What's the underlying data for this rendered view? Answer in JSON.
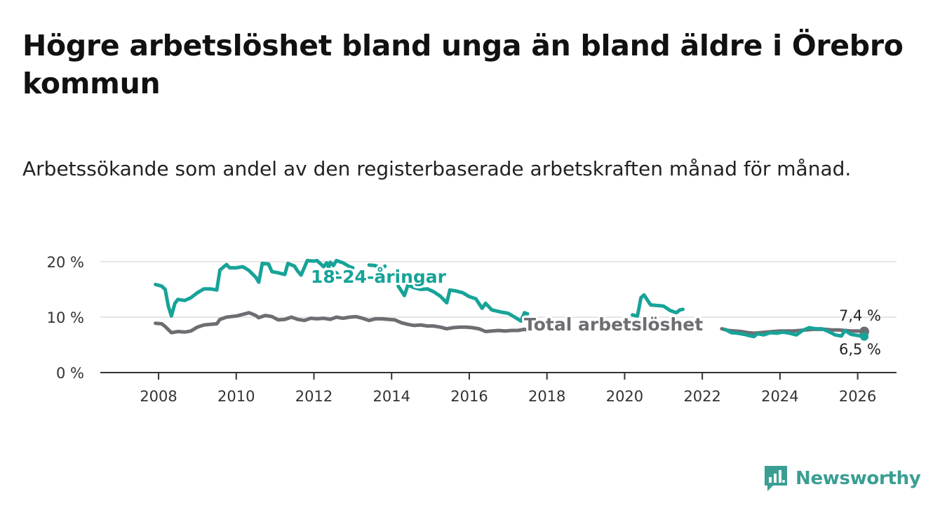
{
  "title": "Högre arbetslöshet bland unga än bland äldre i Örebro kommun",
  "subtitle": "Arbetssökande som andel av den registerbaserade arbetskraften månad för månad.",
  "brand": {
    "name": "Newsworthy"
  },
  "colors": {
    "youth": "#17a398",
    "total": "#6d6d72",
    "axis": "#333333",
    "grid": "#dddddd"
  },
  "chart_data": {
    "type": "line",
    "x_ticks": [
      "2008",
      "2010",
      "2012",
      "2014",
      "2016",
      "2018",
      "2020",
      "2022",
      "2024",
      "2026"
    ],
    "x_tick_values": [
      2008,
      2010,
      2012,
      2014,
      2016,
      2018,
      2020,
      2022,
      2024,
      2026
    ],
    "y_ticks": [
      "0 %",
      "10 %",
      "20 %"
    ],
    "y_tick_values": [
      0,
      10,
      20
    ],
    "xlim": [
      2006.5,
      2027.0
    ],
    "ylim": [
      0,
      20
    ],
    "grid": "horizontal",
    "series": [
      {
        "name": "18-24-åringar",
        "label": "18-24-åringar",
        "color": "#17a398",
        "end_label": "6,5 %",
        "points": [
          [
            2007.92,
            15.9
          ],
          [
            2008.08,
            15.6
          ],
          [
            2008.17,
            15.0
          ],
          [
            2008.25,
            12.0
          ],
          [
            2008.33,
            10.2
          ],
          [
            2008.42,
            12.5
          ],
          [
            2008.5,
            13.2
          ],
          [
            2008.67,
            13.0
          ],
          [
            2008.83,
            13.5
          ],
          [
            2009.0,
            14.4
          ],
          [
            2009.17,
            15.1
          ],
          [
            2009.33,
            15.1
          ],
          [
            2009.5,
            14.9
          ],
          [
            2009.58,
            18.5
          ],
          [
            2009.75,
            19.5
          ],
          [
            2009.83,
            18.9
          ],
          [
            2010.0,
            18.9
          ],
          [
            2010.17,
            19.1
          ],
          [
            2010.33,
            18.4
          ],
          [
            2010.5,
            17.2
          ],
          [
            2010.58,
            16.3
          ],
          [
            2010.67,
            19.7
          ],
          [
            2010.83,
            19.6
          ],
          [
            2010.92,
            18.2
          ],
          [
            2011.08,
            18.0
          ],
          [
            2011.25,
            17.7
          ],
          [
            2011.33,
            19.7
          ],
          [
            2011.5,
            19.2
          ],
          [
            2011.58,
            18.3
          ],
          [
            2011.67,
            17.6
          ],
          [
            2011.83,
            20.2
          ],
          [
            2012.0,
            20.1
          ],
          [
            2012.08,
            20.2
          ],
          [
            2012.25,
            19.1
          ],
          [
            2012.33,
            19.8
          ],
          [
            2012.42,
            18.4
          ],
          [
            2012.58,
            18.0
          ],
          [
            2012.67,
            17.1
          ]
        ],
        "segments": [
          [
            [
              2012.33,
              17.9
            ],
            [
              2012.42,
              19.9
            ],
            [
              2012.5,
              19.3
            ],
            [
              2012.58,
              20.2
            ],
            [
              2012.75,
              19.8
            ],
            [
              2012.92,
              19.1
            ],
            [
              2013.0,
              18.9
            ]
          ],
          [
            [
              2013.42,
              19.4
            ],
            [
              2013.58,
              19.3
            ],
            [
              2013.75,
              18.7
            ],
            [
              2013.83,
              19.2
            ]
          ],
          [
            [
              2014.17,
              15.6
            ],
            [
              2014.33,
              13.9
            ],
            [
              2014.42,
              15.8
            ],
            [
              2014.58,
              15.3
            ],
            [
              2014.75,
              15.0
            ],
            [
              2014.92,
              15.1
            ],
            [
              2015.08,
              14.6
            ],
            [
              2015.25,
              13.8
            ],
            [
              2015.42,
              12.6
            ],
            [
              2015.5,
              14.9
            ],
            [
              2015.67,
              14.7
            ],
            [
              2015.83,
              14.4
            ],
            [
              2016.0,
              13.7
            ],
            [
              2016.17,
              13.3
            ],
            [
              2016.33,
              11.6
            ],
            [
              2016.42,
              12.5
            ],
            [
              2016.58,
              11.3
            ],
            [
              2016.83,
              10.9
            ],
            [
              2017.0,
              10.7
            ],
            [
              2017.17,
              10.0
            ],
            [
              2017.33,
              9.3
            ],
            [
              2017.42,
              10.8
            ],
            [
              2017.5,
              10.6
            ]
          ],
          [
            [
              2020.2,
              10.4
            ],
            [
              2020.33,
              10.2
            ],
            [
              2020.42,
              13.5
            ],
            [
              2020.5,
              14.0
            ],
            [
              2020.67,
              12.2
            ],
            [
              2020.83,
              12.1
            ],
            [
              2021.0,
              12.0
            ],
            [
              2021.17,
              11.2
            ],
            [
              2021.33,
              10.8
            ],
            [
              2021.42,
              11.3
            ],
            [
              2021.5,
              11.4
            ]
          ],
          [
            [
              2022.58,
              7.8
            ],
            [
              2022.75,
              7.2
            ],
            [
              2022.92,
              7.1
            ],
            [
              2023.08,
              6.9
            ],
            [
              2023.25,
              6.6
            ],
            [
              2023.33,
              6.5
            ],
            [
              2023.42,
              7.0
            ],
            [
              2023.58,
              6.8
            ],
            [
              2023.75,
              7.2
            ],
            [
              2023.92,
              7.1
            ],
            [
              2024.08,
              7.3
            ],
            [
              2024.25,
              7.1
            ],
            [
              2024.42,
              6.8
            ],
            [
              2024.58,
              7.6
            ],
            [
              2024.75,
              8.1
            ],
            [
              2024.92,
              7.9
            ],
            [
              2025.08,
              7.9
            ],
            [
              2025.25,
              7.4
            ],
            [
              2025.42,
              6.8
            ],
            [
              2025.58,
              6.6
            ],
            [
              2025.67,
              7.6
            ],
            [
              2025.83,
              6.9
            ],
            [
              2026.0,
              6.7
            ],
            [
              2026.08,
              6.6
            ],
            [
              2026.17,
              6.5
            ]
          ]
        ]
      },
      {
        "name": "Total arbetslöshet",
        "label": "Total arbetslöshet",
        "color": "#6d6d72",
        "end_label": "7,4 %",
        "points": [
          [
            2007.92,
            8.9
          ],
          [
            2008.08,
            8.8
          ],
          [
            2008.17,
            8.3
          ],
          [
            2008.33,
            7.2
          ],
          [
            2008.5,
            7.4
          ],
          [
            2008.67,
            7.3
          ],
          [
            2008.83,
            7.5
          ],
          [
            2009.0,
            8.2
          ],
          [
            2009.17,
            8.6
          ],
          [
            2009.33,
            8.7
          ],
          [
            2009.5,
            8.8
          ],
          [
            2009.58,
            9.6
          ],
          [
            2009.75,
            10.0
          ],
          [
            2010.0,
            10.2
          ],
          [
            2010.17,
            10.5
          ],
          [
            2010.33,
            10.8
          ],
          [
            2010.5,
            10.3
          ],
          [
            2010.58,
            9.9
          ],
          [
            2010.75,
            10.3
          ],
          [
            2010.92,
            10.1
          ],
          [
            2011.08,
            9.5
          ],
          [
            2011.25,
            9.6
          ],
          [
            2011.42,
            10.0
          ],
          [
            2011.58,
            9.6
          ],
          [
            2011.75,
            9.4
          ],
          [
            2011.92,
            9.8
          ],
          [
            2012.08,
            9.7
          ],
          [
            2012.25,
            9.8
          ],
          [
            2012.42,
            9.6
          ],
          [
            2012.58,
            10.0
          ],
          [
            2012.75,
            9.8
          ],
          [
            2012.92,
            10.0
          ],
          [
            2013.08,
            10.1
          ],
          [
            2013.25,
            9.8
          ],
          [
            2013.42,
            9.4
          ],
          [
            2013.58,
            9.7
          ],
          [
            2013.75,
            9.7
          ],
          [
            2013.92,
            9.6
          ],
          [
            2014.08,
            9.5
          ],
          [
            2014.25,
            9.0
          ],
          [
            2014.42,
            8.7
          ],
          [
            2014.58,
            8.5
          ],
          [
            2014.75,
            8.6
          ],
          [
            2014.92,
            8.4
          ],
          [
            2015.08,
            8.4
          ],
          [
            2015.25,
            8.2
          ],
          [
            2015.42,
            7.9
          ],
          [
            2015.58,
            8.1
          ],
          [
            2015.75,
            8.2
          ],
          [
            2015.92,
            8.2
          ],
          [
            2016.08,
            8.1
          ],
          [
            2016.25,
            7.9
          ],
          [
            2016.42,
            7.4
          ],
          [
            2016.58,
            7.5
          ],
          [
            2016.75,
            7.6
          ],
          [
            2016.92,
            7.5
          ],
          [
            2017.08,
            7.6
          ],
          [
            2017.25,
            7.6
          ],
          [
            2017.42,
            7.8
          ],
          [
            2017.58,
            7.6
          ]
        ],
        "segments": [
          [
            [
              2022.5,
              7.9
            ],
            [
              2022.67,
              7.6
            ],
            [
              2022.83,
              7.5
            ],
            [
              2023.0,
              7.4
            ],
            [
              2023.17,
              7.2
            ],
            [
              2023.33,
              7.1
            ],
            [
              2023.5,
              7.2
            ],
            [
              2023.67,
              7.3
            ],
            [
              2023.83,
              7.4
            ],
            [
              2024.0,
              7.5
            ],
            [
              2024.17,
              7.5
            ],
            [
              2024.33,
              7.5
            ],
            [
              2024.5,
              7.6
            ],
            [
              2024.67,
              7.7
            ],
            [
              2024.83,
              7.8
            ],
            [
              2025.0,
              7.8
            ],
            [
              2025.17,
              7.8
            ],
            [
              2025.33,
              7.7
            ],
            [
              2025.5,
              7.7
            ],
            [
              2025.67,
              7.6
            ],
            [
              2025.83,
              7.5
            ],
            [
              2026.0,
              7.5
            ],
            [
              2026.17,
              7.4
            ]
          ]
        ]
      }
    ]
  }
}
